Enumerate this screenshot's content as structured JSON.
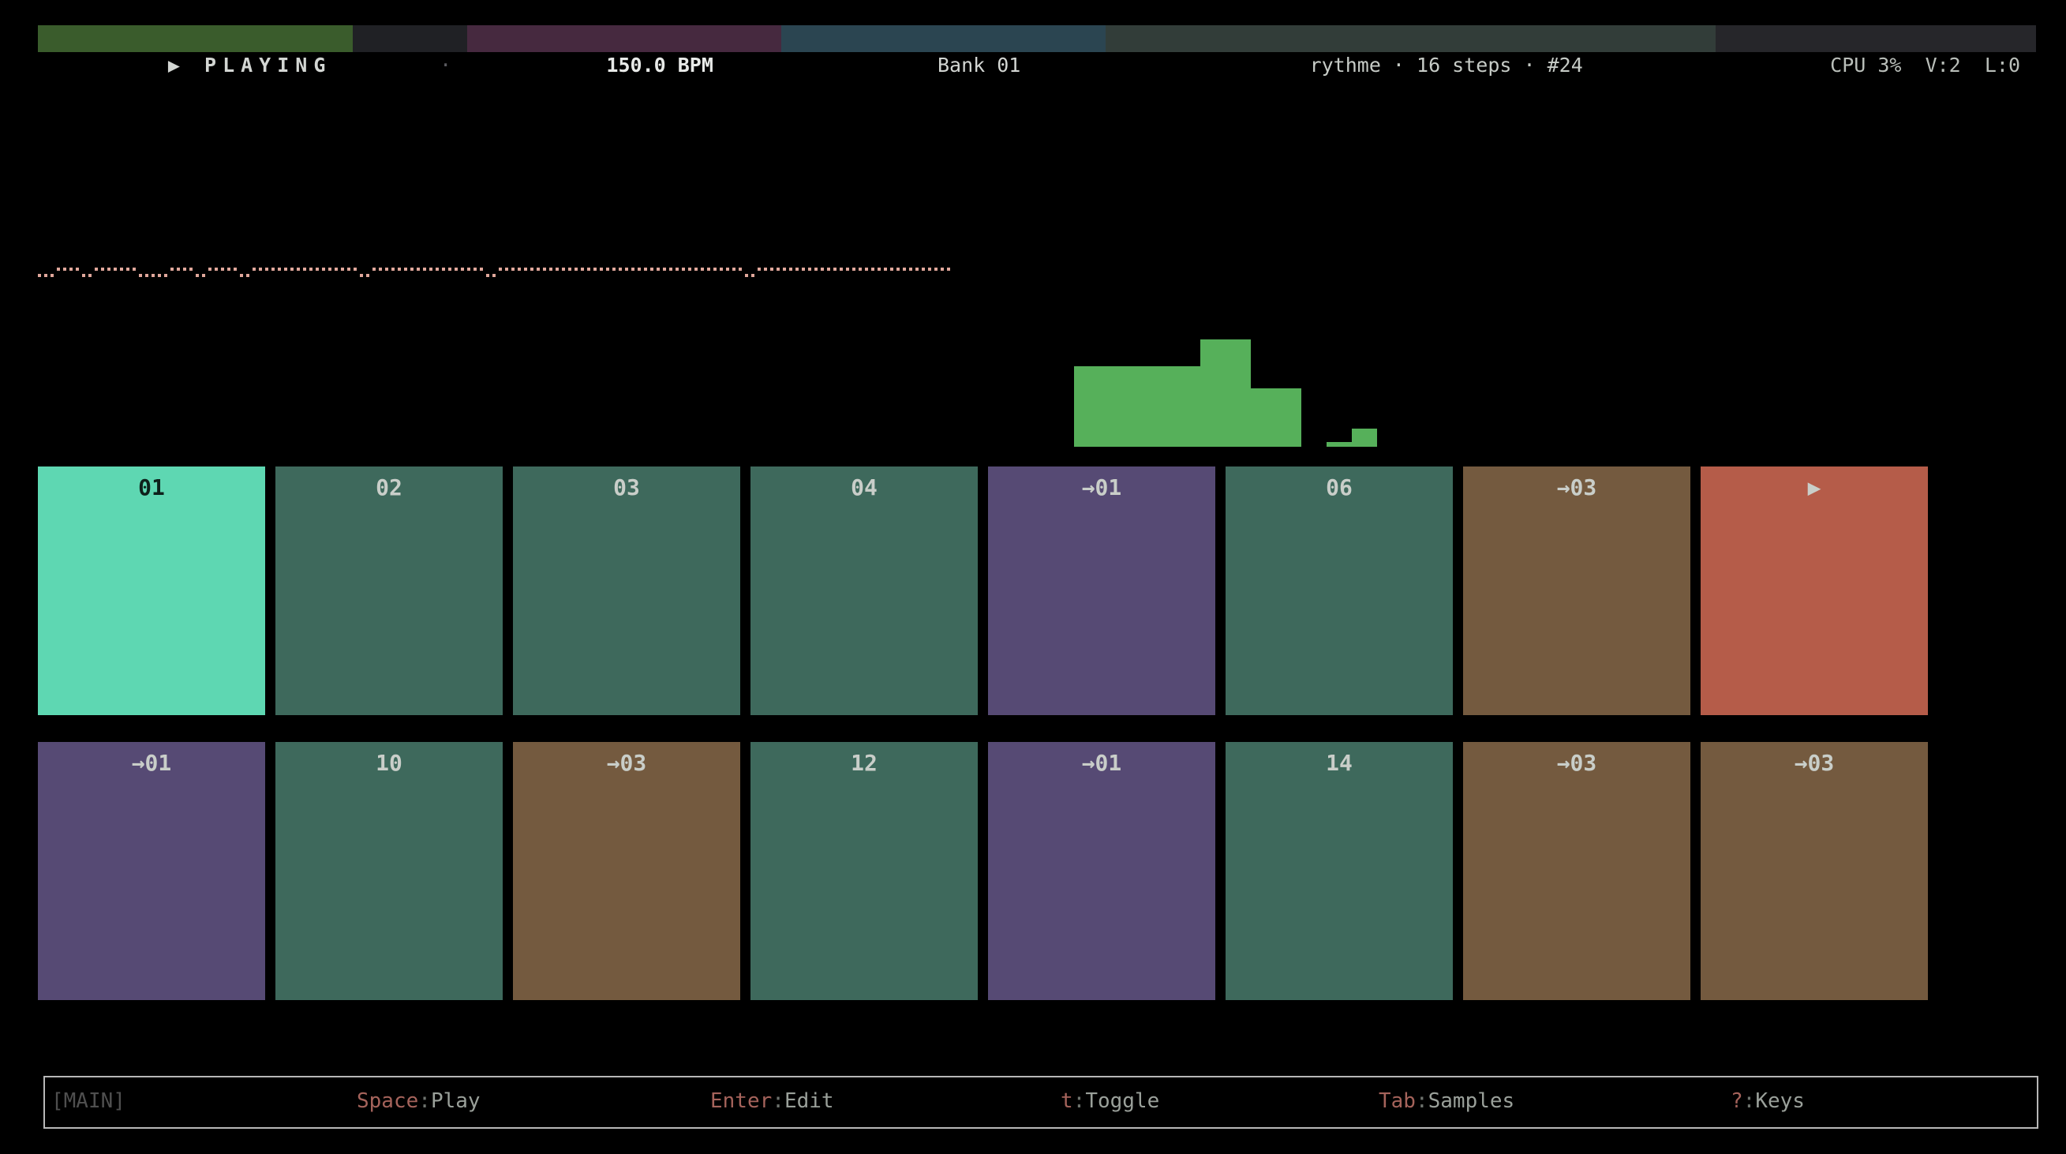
{
  "top_bar": {
    "transport": {
      "icon": "▶",
      "label": "PLAYING"
    },
    "metronome_dot": "·",
    "bpm": "150.0 BPM",
    "bank": "Bank 01",
    "pattern_info": "rythme · 16 steps · #24",
    "stats": "CPU 3%  V:2  L:0"
  },
  "waveform": {
    "pattern": "0001111001111111000001111001111100111111111111111110011111111111111111100111111111111111111111111111111111111111001111111111111111111111111111111",
    "color": "#e0a79b"
  },
  "level_meter": {
    "bar_heights": [
      102,
      102,
      102,
      102,
      102,
      136,
      136,
      74,
      74,
      0,
      6,
      23
    ],
    "max_height": 136,
    "color": "#56b05a"
  },
  "pads": {
    "rows": [
      [
        {
          "label": "01",
          "variant": "active"
        },
        {
          "label": "02",
          "variant": "teal"
        },
        {
          "label": "03",
          "variant": "teal"
        },
        {
          "label": "04",
          "variant": "teal"
        },
        {
          "label": "→01",
          "variant": "purple"
        },
        {
          "label": "06",
          "variant": "teal"
        },
        {
          "label": "→03",
          "variant": "brown"
        },
        {
          "label": "▶",
          "variant": "red"
        }
      ],
      [
        {
          "label": "→01",
          "variant": "purple"
        },
        {
          "label": "10",
          "variant": "teal"
        },
        {
          "label": "→03",
          "variant": "brown"
        },
        {
          "label": "12",
          "variant": "teal"
        },
        {
          "label": "→01",
          "variant": "purple"
        },
        {
          "label": "14",
          "variant": "teal"
        },
        {
          "label": "→03",
          "variant": "brown"
        },
        {
          "label": "→03",
          "variant": "brown"
        }
      ]
    ]
  },
  "footer": {
    "mode": "[MAIN]",
    "hints": [
      {
        "key": "Space",
        "label": "Play"
      },
      {
        "key": "Enter",
        "label": "Edit"
      },
      {
        "key": "t",
        "label": "Toggle"
      },
      {
        "key": "Tab",
        "label": "Samples"
      },
      {
        "key": "?",
        "label": "Keys"
      }
    ]
  },
  "colors": {
    "top_green": "#3a5c2c",
    "top_dark": "#202125",
    "top_purple": "#46293f",
    "top_teal": "#2b4551",
    "top_olive": "#323d39",
    "top_gray": "#26262a",
    "pad_active_bg": "#5ed7b2",
    "pad_active_text": "#0e211b",
    "pad_teal_bg": "#3e695c",
    "pad_purple_bg": "#564a74",
    "pad_brown_bg": "#745a3f",
    "pad_red_bg": "#b55c49",
    "pad_text": "#c9cec9"
  }
}
